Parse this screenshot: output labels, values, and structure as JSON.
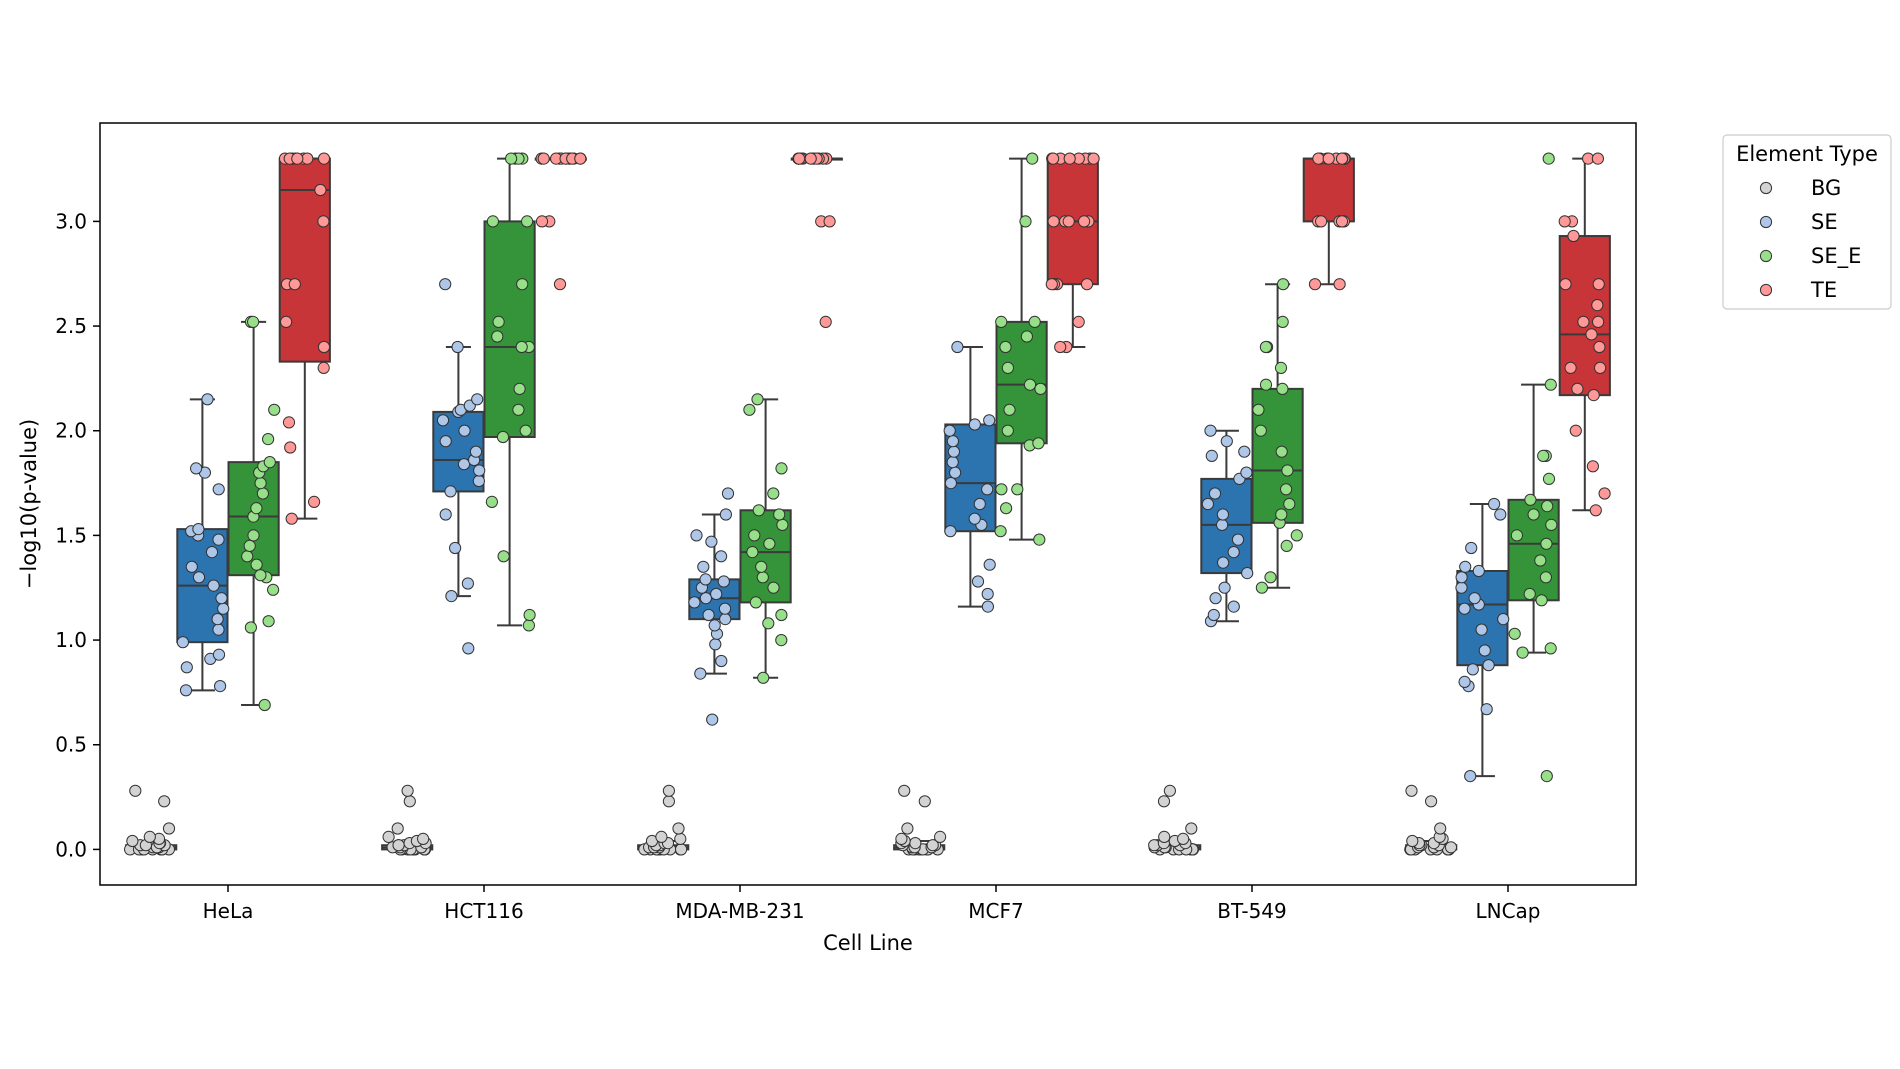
{
  "chart_data": {
    "type": "box",
    "xlabel": "Cell Line",
    "ylabel": "−log10(p-value)",
    "ylim": [
      -0.17,
      3.47
    ],
    "yticks": [
      0.0,
      0.5,
      1.0,
      1.5,
      2.0,
      2.5,
      3.0
    ],
    "ytick_labels": [
      "0.0",
      "0.5",
      "1.0",
      "1.5",
      "2.0",
      "2.5",
      "3.0"
    ],
    "categories": [
      "HeLa",
      "HCT116",
      "MDA-MB-231",
      "MCF7",
      "BT-549",
      "LNCap"
    ],
    "legend": {
      "title": "Element Type",
      "position": "outside right",
      "entries": [
        {
          "label": "BG",
          "box_color": "#bfbfbf",
          "point_color": "#d3d3d3"
        },
        {
          "label": "SE",
          "box_color": "#2b74b0",
          "point_color": "#aec7e8"
        },
        {
          "label": "SE_E",
          "box_color": "#35943a",
          "point_color": "#98df8a"
        },
        {
          "label": "TE",
          "box_color": "#c83538",
          "point_color": "#ff9896"
        }
      ]
    },
    "series": [
      {
        "name": "BG",
        "boxes": [
          {
            "category": "HeLa",
            "whislo": 0.0,
            "q1": 0.0,
            "med": 0.01,
            "q3": 0.02,
            "whishi": 0.04,
            "points": [
              0.0,
              0.0,
              0.0,
              0.0,
              0.0,
              0.0,
              0.0,
              0.0,
              0.0,
              0.01,
              0.01,
              0.01,
              0.02,
              0.02,
              0.02,
              0.03,
              0.03,
              0.04,
              0.05,
              0.06,
              0.1,
              0.23,
              0.28
            ]
          },
          {
            "category": "HCT116",
            "whislo": 0.0,
            "q1": 0.0,
            "med": 0.01,
            "q3": 0.02,
            "whishi": 0.04,
            "points": [
              0.0,
              0.0,
              0.0,
              0.0,
              0.0,
              0.0,
              0.0,
              0.0,
              0.0,
              0.01,
              0.01,
              0.01,
              0.02,
              0.02,
              0.02,
              0.03,
              0.03,
              0.04,
              0.05,
              0.06,
              0.1,
              0.23,
              0.28
            ]
          },
          {
            "category": "MDA-MB-231",
            "whislo": 0.0,
            "q1": 0.0,
            "med": 0.01,
            "q3": 0.02,
            "whishi": 0.04,
            "points": [
              0.0,
              0.0,
              0.0,
              0.0,
              0.0,
              0.0,
              0.0,
              0.0,
              0.0,
              0.01,
              0.01,
              0.01,
              0.02,
              0.02,
              0.02,
              0.03,
              0.03,
              0.04,
              0.05,
              0.06,
              0.1,
              0.23,
              0.28
            ]
          },
          {
            "category": "MCF7",
            "whislo": 0.0,
            "q1": 0.0,
            "med": 0.01,
            "q3": 0.02,
            "whishi": 0.04,
            "points": [
              0.0,
              0.0,
              0.0,
              0.0,
              0.0,
              0.0,
              0.0,
              0.0,
              0.0,
              0.01,
              0.01,
              0.01,
              0.02,
              0.02,
              0.02,
              0.03,
              0.03,
              0.04,
              0.05,
              0.06,
              0.1,
              0.23,
              0.28
            ]
          },
          {
            "category": "BT-549",
            "whislo": 0.0,
            "q1": 0.0,
            "med": 0.01,
            "q3": 0.02,
            "whishi": 0.04,
            "points": [
              0.0,
              0.0,
              0.0,
              0.0,
              0.0,
              0.0,
              0.0,
              0.0,
              0.0,
              0.01,
              0.01,
              0.01,
              0.02,
              0.02,
              0.02,
              0.03,
              0.03,
              0.04,
              0.05,
              0.06,
              0.1,
              0.23,
              0.28
            ]
          },
          {
            "category": "LNCap",
            "whislo": 0.0,
            "q1": 0.0,
            "med": 0.01,
            "q3": 0.02,
            "whishi": 0.04,
            "points": [
              0.0,
              0.0,
              0.0,
              0.0,
              0.0,
              0.0,
              0.0,
              0.0,
              0.0,
              0.01,
              0.01,
              0.01,
              0.02,
              0.02,
              0.02,
              0.03,
              0.03,
              0.04,
              0.05,
              0.06,
              0.1,
              0.23,
              0.28
            ]
          }
        ]
      },
      {
        "name": "SE",
        "boxes": [
          {
            "category": "HeLa",
            "whislo": 0.76,
            "q1": 0.99,
            "med": 1.26,
            "q3": 1.53,
            "whishi": 2.15,
            "points": [
              0.76,
              0.78,
              0.87,
              0.91,
              0.93,
              0.99,
              1.05,
              1.1,
              1.15,
              1.2,
              1.26,
              1.3,
              1.35,
              1.42,
              1.48,
              1.5,
              1.52,
              1.53,
              1.72,
              1.8,
              1.82,
              2.15
            ]
          },
          {
            "category": "HCT116",
            "whislo": 1.21,
            "q1": 1.71,
            "med": 1.86,
            "q3": 2.09,
            "whishi": 2.4,
            "points": [
              0.96,
              1.21,
              1.27,
              1.44,
              1.6,
              1.71,
              1.76,
              1.81,
              1.84,
              1.86,
              1.9,
              1.95,
              2.0,
              2.05,
              2.09,
              2.1,
              2.12,
              2.15,
              2.4,
              2.7
            ]
          },
          {
            "category": "MDA-MB-231",
            "whislo": 0.84,
            "q1": 1.1,
            "med": 1.2,
            "q3": 1.29,
            "whishi": 1.6,
            "points": [
              0.62,
              0.84,
              0.9,
              0.98,
              1.03,
              1.07,
              1.1,
              1.12,
              1.15,
              1.18,
              1.2,
              1.22,
              1.25,
              1.28,
              1.29,
              1.35,
              1.4,
              1.47,
              1.5,
              1.6,
              1.7
            ]
          },
          {
            "category": "MCF7",
            "whislo": 1.16,
            "q1": 1.52,
            "med": 1.75,
            "q3": 2.03,
            "whishi": 2.4,
            "points": [
              1.16,
              1.22,
              1.28,
              1.36,
              1.52,
              1.55,
              1.58,
              1.65,
              1.72,
              1.75,
              1.8,
              1.85,
              1.9,
              1.95,
              2.0,
              2.03,
              2.05,
              2.4
            ]
          },
          {
            "category": "BT-549",
            "whislo": 1.09,
            "q1": 1.32,
            "med": 1.55,
            "q3": 1.77,
            "whishi": 2.0,
            "points": [
              1.09,
              1.12,
              1.16,
              1.2,
              1.25,
              1.32,
              1.37,
              1.42,
              1.48,
              1.55,
              1.6,
              1.65,
              1.7,
              1.77,
              1.8,
              1.88,
              1.9,
              1.95,
              2.0
            ]
          },
          {
            "category": "LNCap",
            "whislo": 0.35,
            "q1": 0.88,
            "med": 1.17,
            "q3": 1.33,
            "whishi": 1.65,
            "points": [
              0.35,
              0.67,
              0.78,
              0.8,
              0.86,
              0.88,
              0.95,
              1.05,
              1.1,
              1.15,
              1.17,
              1.2,
              1.25,
              1.3,
              1.33,
              1.35,
              1.44,
              1.6,
              1.65
            ]
          }
        ]
      },
      {
        "name": "SE_E",
        "boxes": [
          {
            "category": "HeLa",
            "whislo": 0.69,
            "q1": 1.31,
            "med": 1.59,
            "q3": 1.85,
            "whishi": 2.52,
            "points": [
              0.69,
              1.06,
              1.09,
              1.24,
              1.3,
              1.31,
              1.36,
              1.4,
              1.45,
              1.5,
              1.59,
              1.63,
              1.7,
              1.75,
              1.8,
              1.83,
              1.85,
              1.96,
              2.1,
              2.52,
              2.52
            ]
          },
          {
            "category": "HCT116",
            "whislo": 1.07,
            "q1": 1.97,
            "med": 2.4,
            "q3": 3.0,
            "whishi": 3.3,
            "points": [
              1.07,
              1.12,
              1.4,
              1.66,
              1.97,
              2.0,
              2.1,
              2.2,
              2.4,
              2.4,
              2.45,
              2.52,
              2.7,
              3.0,
              3.0,
              3.3,
              3.3,
              3.3,
              3.3
            ]
          },
          {
            "category": "MDA-MB-231",
            "whislo": 0.82,
            "q1": 1.18,
            "med": 1.42,
            "q3": 1.62,
            "whishi": 2.15,
            "points": [
              0.82,
              1.0,
              1.08,
              1.12,
              1.18,
              1.25,
              1.3,
              1.35,
              1.42,
              1.46,
              1.5,
              1.55,
              1.6,
              1.62,
              1.7,
              1.82,
              2.1,
              2.15
            ]
          },
          {
            "category": "MCF7",
            "whislo": 1.48,
            "q1": 1.94,
            "med": 2.22,
            "q3": 2.52,
            "whishi": 3.3,
            "points": [
              1.48,
              1.52,
              1.63,
              1.72,
              1.72,
              1.93,
              1.94,
              2.0,
              2.1,
              2.2,
              2.22,
              2.3,
              2.4,
              2.45,
              2.52,
              2.52,
              3.0,
              3.3
            ]
          },
          {
            "category": "BT-549",
            "whislo": 1.25,
            "q1": 1.56,
            "med": 1.81,
            "q3": 2.2,
            "whishi": 2.7,
            "points": [
              1.25,
              1.3,
              1.45,
              1.5,
              1.56,
              1.6,
              1.65,
              1.72,
              1.81,
              1.9,
              2.0,
              2.1,
              2.2,
              2.22,
              2.3,
              2.4,
              2.4,
              2.52,
              2.7
            ]
          },
          {
            "category": "LNCap",
            "whislo": 0.94,
            "q1": 1.19,
            "med": 1.46,
            "q3": 1.67,
            "whishi": 2.22,
            "points": [
              0.35,
              0.94,
              0.96,
              1.03,
              1.19,
              1.22,
              1.3,
              1.38,
              1.46,
              1.5,
              1.55,
              1.6,
              1.64,
              1.67,
              1.77,
              1.88,
              1.88,
              2.22,
              3.3
            ]
          }
        ]
      },
      {
        "name": "TE",
        "boxes": [
          {
            "category": "HeLa",
            "whislo": 1.58,
            "q1": 2.33,
            "med": 3.15,
            "q3": 3.3,
            "whishi": 3.3,
            "points": [
              1.58,
              1.66,
              1.92,
              2.04,
              2.3,
              2.4,
              2.52,
              2.7,
              2.7,
              3.0,
              3.15,
              3.3,
              3.3,
              3.3,
              3.3,
              3.3,
              3.3,
              3.3,
              3.3
            ]
          },
          {
            "category": "HCT116",
            "whislo": 3.3,
            "q1": 3.3,
            "med": 3.3,
            "q3": 3.3,
            "whishi": 3.3,
            "points": [
              2.7,
              3.0,
              3.0,
              3.3,
              3.3,
              3.3,
              3.3,
              3.3,
              3.3,
              3.3,
              3.3,
              3.3,
              3.3,
              3.3,
              3.3,
              3.3
            ]
          },
          {
            "category": "MDA-MB-231",
            "whislo": 3.3,
            "q1": 3.3,
            "med": 3.3,
            "q3": 3.3,
            "whishi": 3.3,
            "points": [
              2.52,
              3.0,
              3.0,
              3.3,
              3.3,
              3.3,
              3.3,
              3.3,
              3.3,
              3.3,
              3.3,
              3.3,
              3.3,
              3.3,
              3.3
            ]
          },
          {
            "category": "MCF7",
            "whislo": 2.4,
            "q1": 2.7,
            "med": 3.0,
            "q3": 3.3,
            "whishi": 3.3,
            "points": [
              2.4,
              2.4,
              2.52,
              2.7,
              2.7,
              2.7,
              2.7,
              3.0,
              3.0,
              3.0,
              3.0,
              3.0,
              3.3,
              3.3,
              3.3,
              3.3,
              3.3,
              3.3,
              3.3,
              3.3
            ]
          },
          {
            "category": "BT-549",
            "whislo": 2.7,
            "q1": 3.0,
            "med": 3.3,
            "q3": 3.3,
            "whishi": 3.3,
            "points": [
              2.7,
              2.7,
              3.0,
              3.0,
              3.0,
              3.0,
              3.0,
              3.3,
              3.3,
              3.3,
              3.3,
              3.3,
              3.3,
              3.3,
              3.3,
              3.3,
              3.3
            ]
          },
          {
            "category": "LNCap",
            "whislo": 1.62,
            "q1": 2.17,
            "med": 2.46,
            "q3": 2.93,
            "whishi": 3.3,
            "points": [
              1.62,
              1.7,
              1.83,
              2.0,
              2.17,
              2.2,
              2.3,
              2.3,
              2.4,
              2.46,
              2.52,
              2.52,
              2.6,
              2.7,
              2.7,
              2.93,
              3.0,
              3.0,
              3.3,
              3.3
            ]
          }
        ]
      }
    ]
  }
}
